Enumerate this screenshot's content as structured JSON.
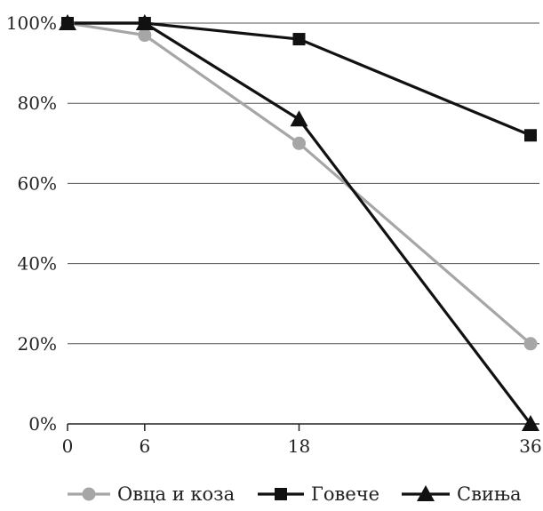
{
  "chart_data": {
    "type": "line",
    "title": "",
    "xlabel": "",
    "ylabel": "",
    "categories": [
      "0",
      "6",
      "18",
      "36"
    ],
    "y_ticks": [
      "0%",
      "20%",
      "40%",
      "60%",
      "80%",
      "100%"
    ],
    "ylim": [
      0,
      100
    ],
    "grid": "horizontal",
    "legend_position": "bottom",
    "series": [
      {
        "name": "Овца и коза",
        "values": [
          100,
          97,
          70,
          20
        ],
        "marker": "circle",
        "color": "#a6a6a6"
      },
      {
        "name": "Говече",
        "values": [
          100,
          100,
          96,
          72
        ],
        "marker": "square",
        "color": "#111111"
      },
      {
        "name": "Свиња",
        "values": [
          100,
          100,
          76,
          0
        ],
        "marker": "triangle",
        "color": "#111111"
      }
    ]
  }
}
